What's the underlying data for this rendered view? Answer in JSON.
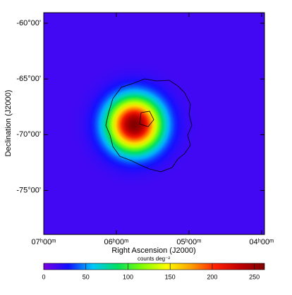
{
  "chart_data": {
    "type": "image",
    "xlabel": "Right Ascension (J2000)",
    "ylabel": "Declination (J2000)",
    "xlim": [
      7.0,
      3.96
    ],
    "ylim": [
      -78.95,
      -59.05
    ],
    "xticks": [
      {
        "value": 7,
        "label": "07ʰ00ᵐ"
      },
      {
        "value": 6,
        "label": "06ʰ00ᵐ"
      },
      {
        "value": 5,
        "label": "05ʰ00ᵐ"
      },
      {
        "value": 4,
        "label": "04ʰ00ᵐ"
      }
    ],
    "yticks": [
      {
        "value": -60,
        "label": "-60°00'"
      },
      {
        "value": -65,
        "label": "-65°00'"
      },
      {
        "value": -70,
        "label": "-70°00'"
      },
      {
        "value": -75,
        "label": "-75°00'"
      }
    ],
    "source": {
      "x": 5.75,
      "y": -69.1,
      "peak": 262,
      "sigma": 1.6,
      "background": 15
    },
    "colorbar": {
      "label": "counts deg⁻²",
      "lim": [
        0,
        262
      ],
      "ticks": [
        0,
        50,
        100,
        150,
        200,
        250
      ],
      "colormap": [
        "#7a00e6",
        "#1010ff",
        "#00c8ff",
        "#00e060",
        "#80ff00",
        "#ffff00",
        "#ffa000",
        "#ff2000",
        "#c00000",
        "#800000"
      ]
    }
  }
}
